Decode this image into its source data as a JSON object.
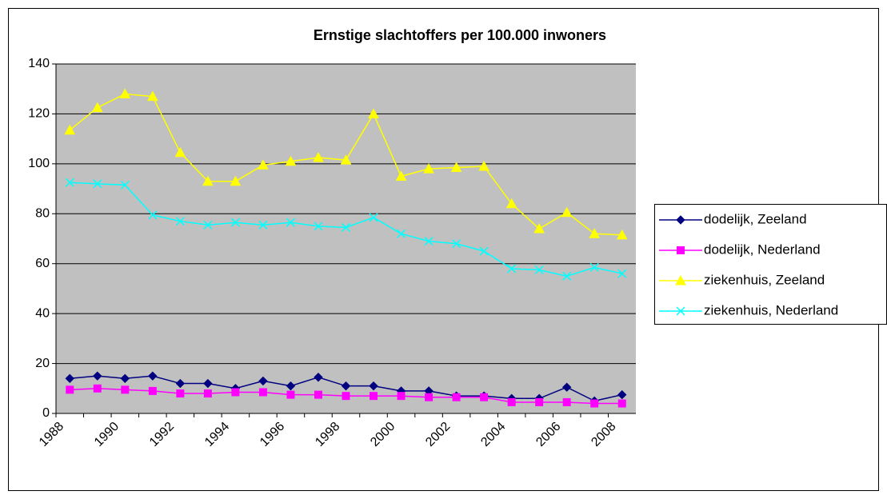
{
  "chart_data": {
    "type": "line",
    "title": "Ernstige slachtoffers per 100.000 inwoners",
    "categories": [
      "1988",
      null,
      "1990",
      null,
      "1992",
      null,
      "1994",
      null,
      "1996",
      null,
      "1998",
      null,
      "2000",
      null,
      "2002",
      null,
      "2004",
      null,
      "2006",
      null,
      "2008"
    ],
    "series": [
      {
        "name": "dodelijk, Zeeland",
        "color": "#000080",
        "marker": "diamond",
        "values": [
          14,
          15,
          14,
          15,
          12,
          12,
          10,
          13,
          11,
          14.5,
          11,
          11,
          9,
          9,
          7,
          7,
          6,
          6,
          10.5,
          5,
          7.5
        ]
      },
      {
        "name": "dodelijk, Nederland",
        "color": "#ff00ff",
        "marker": "square",
        "values": [
          9.5,
          10,
          9.5,
          9,
          8,
          8,
          8.5,
          8.5,
          7.5,
          7.5,
          7,
          7,
          7,
          6.5,
          6.5,
          6.5,
          4.5,
          4.5,
          4.5,
          4,
          4
        ]
      },
      {
        "name": "ziekenhuis, Zeeland",
        "color": "#ffff00",
        "marker": "triangle",
        "values": [
          113.5,
          122.5,
          128,
          127,
          104.5,
          93,
          93,
          99.5,
          101,
          102.5,
          101.5,
          120,
          95,
          98,
          98.5,
          99,
          84,
          74,
          80.5,
          72,
          71.5
        ]
      },
      {
        "name": "ziekenhuis, Nederland",
        "color": "#00ffff",
        "marker": "x",
        "values": [
          92.5,
          92,
          91.5,
          79.5,
          77,
          75.5,
          76.5,
          75.5,
          76.5,
          75,
          74.5,
          78.5,
          72,
          69,
          68,
          65,
          58,
          57.5,
          55,
          58.5,
          56
        ]
      }
    ],
    "ylim": [
      0,
      140
    ],
    "yticks": [
      0,
      20,
      40,
      60,
      80,
      100,
      120,
      140
    ],
    "grid": true,
    "legend": "right"
  }
}
